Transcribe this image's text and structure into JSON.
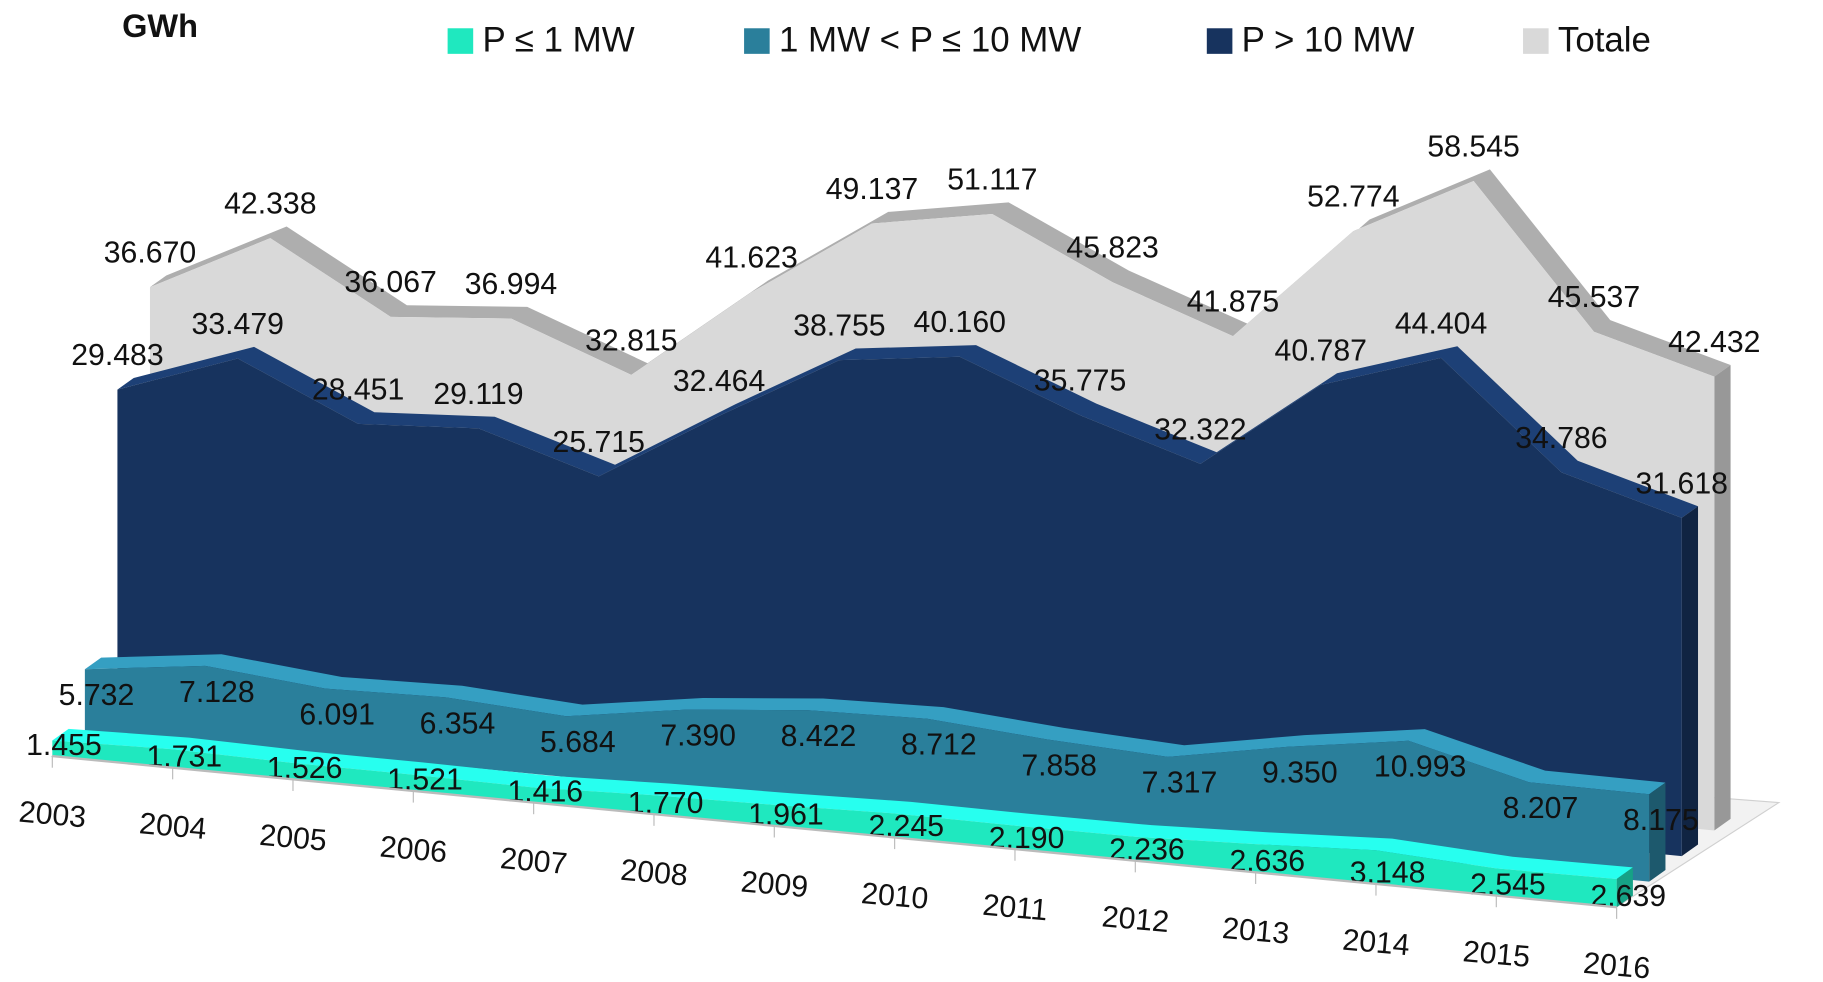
{
  "chart_data": {
    "type": "area3d",
    "ylabel": "GWh",
    "categories": [
      "2003",
      "2004",
      "2005",
      "2006",
      "2007",
      "2008",
      "2009",
      "2010",
      "2011",
      "2012",
      "2013",
      "2014",
      "2015",
      "2016"
    ],
    "series": [
      {
        "name": "P ≤ 1 MW",
        "color": "#1fe8bf",
        "values": [
          1455,
          1731,
          1526,
          1521,
          1416,
          1770,
          1961,
          2245,
          2190,
          2236,
          2636,
          3148,
          2545,
          2639
        ],
        "value_labels": [
          "1.455",
          "1.731",
          "1.526",
          "1.521",
          "1.416",
          "1.770",
          "1.961",
          "2.245",
          "2.190",
          "2.236",
          "2.636",
          "3.148",
          "2.545",
          "2.639"
        ]
      },
      {
        "name": "1 MW < P ≤ 10 MW",
        "color": "#2a7f9b",
        "values": [
          5732,
          7128,
          6091,
          6354,
          5684,
          7390,
          8422,
          8712,
          7858,
          7317,
          9350,
          10993,
          8207,
          8175
        ],
        "value_labels": [
          "5.732",
          "7.128",
          "6.091",
          "6.354",
          "5.684",
          "7.390",
          "8.422",
          "8.712",
          "7.858",
          "7.317",
          "9.350",
          "10.993",
          "8.207",
          "8.175"
        ]
      },
      {
        "name": "P > 10 MW",
        "color": "#17335e",
        "values": [
          29483,
          33479,
          28451,
          29119,
          25715,
          32464,
          38755,
          40160,
          35775,
          32322,
          40787,
          44404,
          34786,
          31618
        ],
        "value_labels": [
          "29.483",
          "33.479",
          "28.451",
          "29.119",
          "25.715",
          "32.464",
          "38.755",
          "40.160",
          "35.775",
          "32.322",
          "40.787",
          "44.404",
          "34.786",
          "31.618"
        ]
      },
      {
        "name": "Totale",
        "color": "#d9d9d9",
        "values": [
          36670,
          42338,
          36067,
          36994,
          32815,
          41623,
          49137,
          51117,
          45823,
          41875,
          52774,
          58545,
          45537,
          42432
        ],
        "value_labels": [
          "36.670",
          "42.338",
          "36.067",
          "36.994",
          "32.815",
          "41.623",
          "49.137",
          "51.117",
          "45.823",
          "41.875",
          "52.774",
          "58.545",
          "45.537",
          "42.432"
        ]
      }
    ]
  }
}
